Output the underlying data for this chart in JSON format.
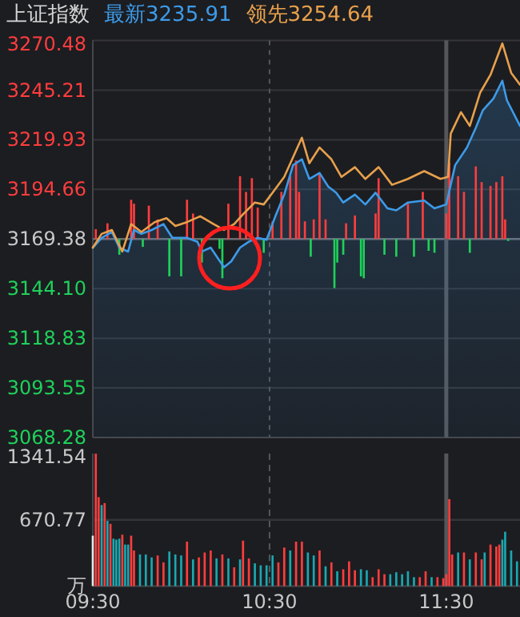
{
  "chart_data": [
    {
      "type": "line",
      "title": "上证指数",
      "legend": "top",
      "grid": true,
      "tick_labels": "y",
      "xlim": [
        9.5,
        11.917
      ],
      "xticks": [
        9.5,
        10.5,
        11.5
      ],
      "ylim": [
        3068.28,
        3270.48
      ],
      "yticks": [
        3068.28,
        3093.55,
        3118.83,
        {
          "value": 3144.1,
          "label": "3144.10"
        },
        3169.38,
        3194.66,
        3219.93,
        3245.21,
        3270.48
      ],
      "ref_lines": [
        {
          "axis": "y",
          "value": 3169.38,
          "color": "#6b6c70",
          "line_style": "solid"
        },
        {
          "axis": "x",
          "value": 11.5,
          "color": "#55565a",
          "line_style": "solid"
        }
      ],
      "series": [
        {
          "type": "bar",
          "color": "#ff3d3d",
          "x": [
            9.517,
            9.583,
            9.717,
            9.733,
            9.817,
            9.867,
            10.033,
            10.067,
            10.267,
            10.333,
            10.367,
            10.4,
            10.433,
            10.517,
            10.567,
            10.617,
            10.65,
            10.667,
            10.7,
            10.75,
            10.783,
            10.817,
            10.933,
            10.983,
            11.1,
            11.117,
            11.283,
            11.367,
            11.5,
            11.517,
            11.567,
            11.6,
            11.667,
            11.7,
            11.75,
            11.783,
            11.817,
            11.833
          ],
          "values": [
            5,
            8,
            20,
            18,
            17,
            10,
            20,
            13,
            18,
            32,
            24,
            31,
            16,
            9,
            24,
            32,
            40,
            24,
            9,
            10,
            33,
            10,
            8,
            12,
            13,
            31,
            18,
            24,
            13,
            39,
            32,
            24,
            37,
            29,
            27,
            29,
            32,
            10
          ],
          "base": [
            3169.38,
            3169.38,
            3169.38,
            3169.38,
            3169.38,
            3169.38,
            3169.38,
            3169.38,
            3169.38,
            3169.38,
            3169.38,
            3169.38,
            3169.38,
            3169.38,
            3169.38,
            3169.38,
            3169.38,
            3169.38,
            3169.38,
            3169.38,
            3169.38,
            3169.38,
            3169.38,
            3169.38,
            3169.38,
            3169.38,
            3169.38,
            3169.38,
            3169.38,
            3169.38,
            3169.38,
            3169.38,
            3169.38,
            3169.38,
            3169.38,
            3169.38,
            3169.38,
            3169.38
          ]
        },
        {
          "type": "bar",
          "color": "#1fd15a",
          "x": [
            9.65,
            9.783,
            9.933,
            10.0,
            10.117,
            10.217,
            10.233,
            10.467,
            10.733,
            10.867,
            10.883,
            10.917,
            11.017,
            11.033,
            11.15,
            11.217,
            11.317,
            11.4,
            11.433,
            11.633,
            11.85
          ],
          "values": [
            -8,
            -4,
            -19,
            -19,
            -12,
            -5,
            -20,
            -7,
            -9,
            -25,
            -12,
            -8,
            -19,
            -20,
            -8,
            -9,
            -9,
            -6,
            -7,
            -7,
            -1
          ],
          "base": [
            3169.38,
            3169.38,
            3169.38,
            3169.38,
            3169.38,
            3169.38,
            3169.38,
            3169.38,
            3169.38,
            3169.38,
            3169.38,
            3169.38,
            3169.38,
            3169.38,
            3169.38,
            3169.38,
            3169.38,
            3169.38,
            3169.38,
            3169.38,
            3169.38
          ]
        },
        {
          "type": "area",
          "name": "最新3235.91",
          "color": "#3d9be9",
          "x": [
            9.5,
            9.55,
            9.608,
            9.65,
            9.7,
            9.733,
            9.775,
            9.833,
            9.9,
            9.95,
            10.033,
            10.092,
            10.117,
            10.167,
            10.242,
            10.283,
            10.333,
            10.383,
            10.433,
            10.483,
            10.533,
            10.583,
            10.633,
            10.683,
            10.725,
            10.783,
            10.833,
            10.877,
            10.917,
            10.983,
            11.042,
            11.1,
            11.167,
            11.217,
            11.283,
            11.375,
            11.433,
            11.5,
            11.55,
            11.617,
            11.667,
            11.707,
            11.767,
            11.817,
            11.843,
            11.917
          ],
          "values": [
            3165,
            3170,
            3173,
            3165,
            3163,
            3174,
            3172,
            3174,
            3177,
            3170,
            3170,
            3168,
            3163,
            3165,
            3155,
            3158,
            3165,
            3168,
            3170,
            3169,
            3181,
            3192,
            3207,
            3210,
            3200,
            3203,
            3196,
            3193,
            3188,
            3192,
            3187,
            3193,
            3185,
            3184,
            3188,
            3189,
            3185,
            3187,
            3207,
            3216,
            3226,
            3235,
            3241,
            3250,
            3240,
            3227
          ]
        },
        {
          "name": "领先3254.64",
          "color": "#e8a04c",
          "x": [
            9.5,
            9.55,
            9.608,
            9.667,
            9.717,
            9.775,
            9.85,
            9.917,
            9.967,
            10.033,
            10.108,
            10.183,
            10.242,
            10.3,
            10.35,
            10.417,
            10.467,
            10.517,
            10.583,
            10.633,
            10.683,
            10.725,
            10.783,
            10.85,
            10.907,
            10.983,
            11.042,
            11.117,
            11.193,
            11.283,
            11.375,
            11.467,
            11.51,
            11.525,
            11.583,
            11.633,
            11.692,
            11.75,
            11.817,
            11.867,
            11.917
          ],
          "values": [
            3165,
            3172,
            3174,
            3163,
            3177,
            3173,
            3178,
            3180,
            3176,
            3178,
            3181,
            3177,
            3174,
            3177,
            3182,
            3188,
            3187,
            3193,
            3201,
            3211,
            3221,
            3208,
            3216,
            3210,
            3201,
            3206,
            3200,
            3206,
            3197,
            3200,
            3204,
            3200,
            3201,
            3223,
            3234,
            3227,
            3244,
            3253,
            3269,
            3254,
            3248
          ]
        }
      ]
    },
    {
      "type": "bar",
      "xlim": [
        9.5,
        11.917
      ],
      "xticks": [
        {
          "value": 9.5,
          "label": "09:30"
        },
        {
          "value": 10.5,
          "label": "10:30"
        },
        {
          "value": 11.5,
          "label": "11:30"
        }
      ],
      "ylim": [
        0,
        1341.54
      ],
      "yticks": [
        {
          "value": 0,
          "label": "万"
        },
        670.77,
        1341.54
      ],
      "ref_lines": [
        {
          "axis": "y",
          "value": 670.77,
          "color": "#34353a",
          "line_style": "solid"
        },
        {
          "axis": "x",
          "value": 10.5,
          "color": "#55565a",
          "line_style": "dashed"
        },
        {
          "axis": "x",
          "value": 11.5,
          "color": "#55565a",
          "line_style": "solid"
        }
      ],
      "x": [
        9.5,
        9.517,
        9.533,
        9.55,
        9.567,
        9.583,
        9.6,
        9.617,
        9.633,
        9.65,
        9.667,
        9.683,
        9.7,
        9.717,
        9.733,
        9.767,
        9.8,
        9.833,
        9.867,
        9.9,
        9.933,
        9.967,
        10.0,
        10.033,
        10.067,
        10.1,
        10.133,
        10.167,
        10.2,
        10.233,
        10.267,
        10.3,
        10.333,
        10.35,
        10.383,
        10.417,
        10.45,
        10.483,
        10.517,
        10.55,
        10.583,
        10.617,
        10.65,
        10.683,
        10.717,
        10.75,
        10.783,
        10.817,
        10.85,
        10.883,
        10.917,
        10.95,
        10.983,
        11.017,
        11.05,
        11.083,
        11.117,
        11.15,
        11.183,
        11.217,
        11.25,
        11.283,
        11.317,
        11.35,
        11.383,
        11.417,
        11.45,
        11.483,
        11.5,
        11.517,
        11.533,
        11.567,
        11.6,
        11.633,
        11.667,
        11.7,
        11.717,
        11.75,
        11.783,
        11.8,
        11.817,
        11.833,
        11.867,
        11.9
      ],
      "values": [
        510,
        1340,
        900,
        820,
        840,
        660,
        630,
        480,
        470,
        480,
        520,
        420,
        420,
        510,
        360,
        320,
        320,
        290,
        310,
        240,
        350,
        320,
        310,
        450,
        270,
        290,
        340,
        360,
        280,
        320,
        280,
        190,
        270,
        460,
        280,
        230,
        210,
        210,
        310,
        240,
        390,
        360,
        450,
        450,
        340,
        310,
        360,
        200,
        240,
        150,
        170,
        250,
        160,
        170,
        160,
        90,
        170,
        120,
        120,
        140,
        120,
        150,
        90,
        90,
        150,
        90,
        90,
        80,
        120,
        880,
        320,
        340,
        340,
        270,
        340,
        270,
        340,
        420,
        400,
        420,
        470,
        550,
        360,
        250
      ],
      "colors": [
        "#e6e6e6",
        "#ff3d3d",
        "#ff3d3d",
        "#1aa8b0",
        "#ff3d3d",
        "#1aa8b0",
        "#ff3d3d",
        "#1aa8b0",
        "#1aa8b0",
        "#1aa8b0",
        "#ff3d3d",
        "#1aa8b0",
        "#1aa8b0",
        "#ff3d3d",
        "#ff3d3d",
        "#1aa8b0",
        "#1aa8b0",
        "#1aa8b0",
        "#ff3d3d",
        "#ff3d3d",
        "#1aa8b0",
        "#1aa8b0",
        "#1aa8b0",
        "#ff3d3d",
        "#1aa8b0",
        "#ff3d3d",
        "#ff3d3d",
        "#ff3d3d",
        "#1aa8b0",
        "#ff3d3d",
        "#1aa8b0",
        "#ff3d3d",
        "#1aa8b0",
        "#ff3d3d",
        "#ff3d3d",
        "#1aa8b0",
        "#1aa8b0",
        "#1aa8b0",
        "#1aa8b0",
        "#ff3d3d",
        "#ff3d3d",
        "#1aa8b0",
        "#ff3d3d",
        "#ff3d3d",
        "#1aa8b0",
        "#1aa8b0",
        "#ff3d3d",
        "#1aa8b0",
        "#ff3d3d",
        "#1aa8b0",
        "#ff3d3d",
        "#ff3d3d",
        "#ff3d3d",
        "#1aa8b0",
        "#1aa8b0",
        "#ff3d3d",
        "#ff3d3d",
        "#ff3d3d",
        "#1aa8b0",
        "#1aa8b0",
        "#1aa8b0",
        "#1aa8b0",
        "#1aa8b0",
        "#ff3d3d",
        "#ff3d3d",
        "#1aa8b0",
        "#ff3d3d",
        "#ff3d3d",
        "#ff3d3d",
        "#ff3d3d",
        "#ff3d3d",
        "#1aa8b0",
        "#ff3d3d",
        "#1aa8b0",
        "#ff3d3d",
        "#ff3d3d",
        "#1aa8b0",
        "#ff3d3d",
        "#ff3d3d",
        "#ff3d3d",
        "#1aa8b0",
        "#1aa8b0",
        "#1aa8b0",
        "#1aa8b0"
      ]
    }
  ]
}
